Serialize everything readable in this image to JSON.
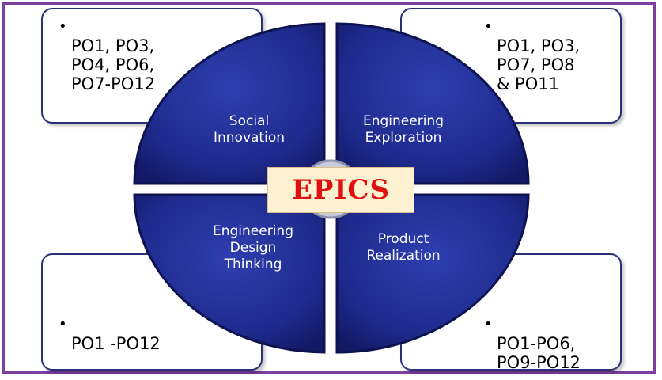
{
  "center": {
    "title": "EPICS"
  },
  "quadrants": {
    "top_left": {
      "label": "Social\nInnovation"
    },
    "top_right": {
      "label": "Engineering\nExploration"
    },
    "bottom_left": {
      "label": "Engineering\nDesign\nThinking"
    },
    "bottom_right": {
      "label": "Product\nRealization"
    }
  },
  "notes": {
    "top_left": {
      "bullet": "•",
      "text": "PO1, PO3,\nPO4, PO6,\nPO7-PO12"
    },
    "top_right": {
      "bullet": "•",
      "text": "PO1, PO3,\nPO7, PO8\n& PO11"
    },
    "bottom_left": {
      "bullet": "•",
      "text": "PO1 -PO12"
    },
    "bottom_right": {
      "bullet": "•",
      "text": "PO1-PO6,\nPO9-PO12"
    }
  },
  "colors": {
    "frame": "#7b3fa0",
    "quadrant_fill": "#1e2a8c",
    "quadrant_edge": "#0d1250",
    "center_text": "#e01010",
    "center_box": "#fdf1d2"
  }
}
